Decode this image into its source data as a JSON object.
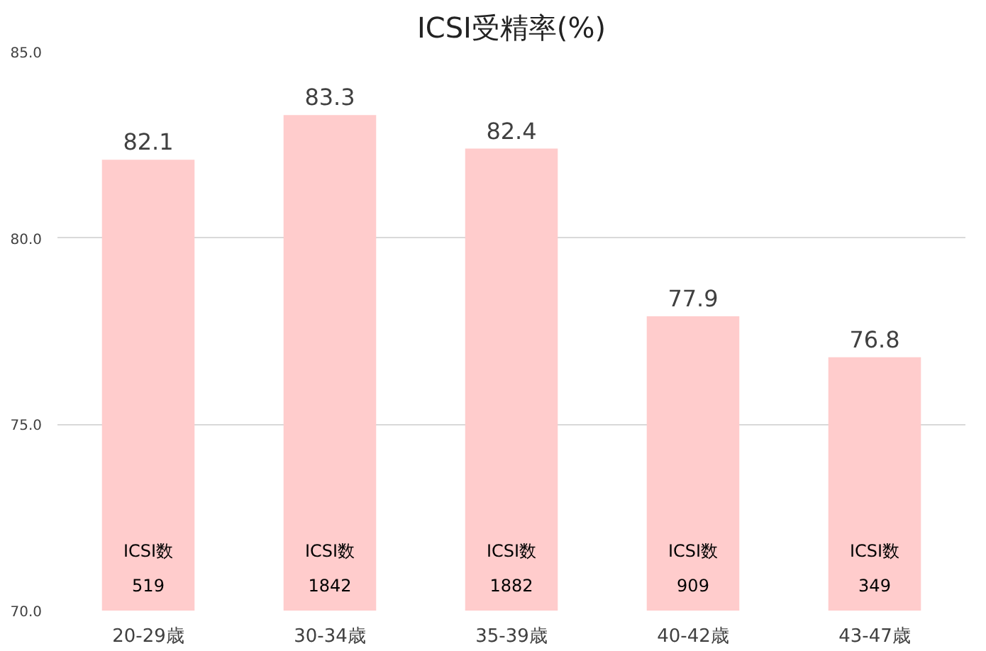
{
  "chart_data": {
    "type": "bar",
    "title": "ICSI受精率(%)",
    "categories": [
      "20-29歳",
      "30-34歳",
      "35-39歳",
      "40-42歳",
      "43-47歳"
    ],
    "values": [
      82.1,
      83.3,
      82.4,
      77.9,
      76.8
    ],
    "color": "#ffcccc",
    "ylim": [
      70,
      85
    ],
    "yticks": [
      {
        "value": 70,
        "label": "70.0"
      },
      {
        "value": 75,
        "label": "75.0"
      },
      {
        "value": 80,
        "label": "80.0"
      },
      {
        "value": 85,
        "label": "85.0"
      }
    ],
    "grid": "y",
    "data_labels": true,
    "annotations": [
      "ICSI数",
      "519",
      "ICSI数",
      "1842",
      "ICSI数",
      "1882",
      "ICSI数",
      "909",
      "ICSI数",
      "349"
    ]
  }
}
